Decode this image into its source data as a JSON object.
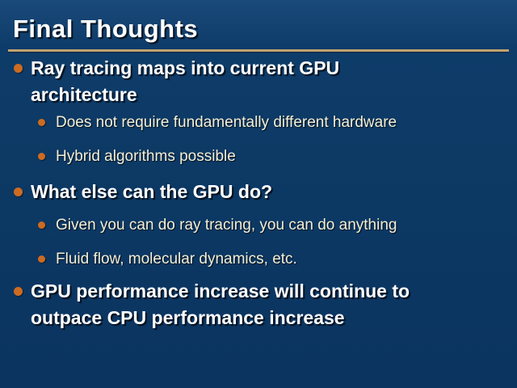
{
  "slide": {
    "title": "Final Thoughts",
    "items": [
      {
        "level": "1",
        "text": "Ray tracing maps into current GPU\narchitecture"
      },
      {
        "level": "2",
        "text": "Does not require fundamentally different hardware"
      },
      {
        "level": "2",
        "text": "Hybrid algorithms possible"
      },
      {
        "level": "1",
        "text": "What else can the GPU do?"
      },
      {
        "level": "2",
        "text": "Given you can do ray tracing, you can do anything"
      },
      {
        "level": "2",
        "text": "Fluid flow, molecular dynamics, etc."
      },
      {
        "level": "1",
        "text": "GPU performance increase will continue to\noutpace CPU performance increase"
      }
    ],
    "colors": {
      "background": "#0d3a66",
      "background_top": "#1a4a7a",
      "title_text": "#ffffff",
      "title_underline": "#c1a271",
      "bullet": "#cc6b22",
      "level1_text": "#ffffff",
      "level2_text": "#f3f0d7"
    }
  }
}
